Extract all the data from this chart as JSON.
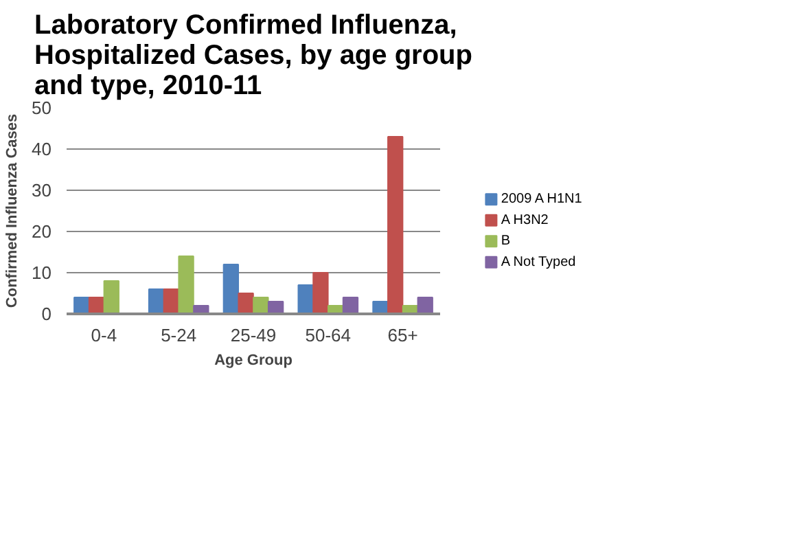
{
  "chart_data": {
    "type": "bar",
    "title": "Laboratory Confirmed Influenza, Hospitalized Cases, by age group and type, 2010-11",
    "xlabel": "Age Group",
    "ylabel": "Confirmed Influenza Cases",
    "categories": [
      "0-4",
      "5-24",
      "25-49",
      "50-64",
      "65+"
    ],
    "series": [
      {
        "name": "2009 A H1N1",
        "color": "#4f81bd",
        "values": [
          4,
          6,
          12,
          7,
          3
        ]
      },
      {
        "name": "A H3N2",
        "color": "#c0504d",
        "values": [
          4,
          6,
          5,
          10,
          43
        ]
      },
      {
        "name": "B",
        "color": "#9bbb59",
        "values": [
          8,
          14,
          4,
          2,
          2
        ]
      },
      {
        "name": "A Not Typed",
        "color": "#8064a2",
        "values": [
          null,
          2,
          3,
          4,
          4
        ]
      }
    ],
    "ylim": [
      0,
      50
    ],
    "yticks": [
      0,
      10,
      20,
      30,
      40,
      50
    ],
    "grid": "y",
    "legend": "right"
  }
}
